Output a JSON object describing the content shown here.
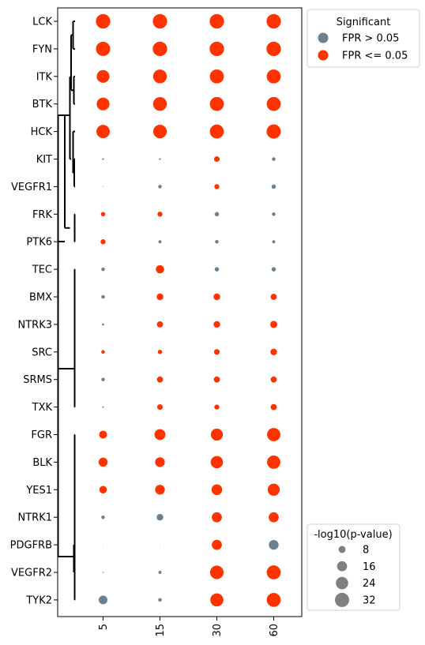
{
  "chart_data": {
    "type": "scatter",
    "title": "",
    "xlabel": "",
    "ylabel": "",
    "x_categories": [
      "5",
      "15",
      "30",
      "60"
    ],
    "y_categories": [
      "LCK",
      "FYN",
      "ITK",
      "BTK",
      "HCK",
      "KIT",
      "VEGFR1",
      "FRK",
      "PTK6",
      "TEC",
      "BMX",
      "NTRK3",
      "SRC",
      "SRMS",
      "TXK",
      "FGR",
      "BLK",
      "YES1",
      "NTRK1",
      "PDGFRB",
      "VEGFR2",
      "TYK2"
    ],
    "size_metric": "-log10(p-value)",
    "colors": {
      "significant": "#ff3300",
      "not_significant": "#6b8191"
    },
    "points": [
      {
        "row": "LCK",
        "values": [
          33,
          33,
          33,
          33
        ],
        "significant": [
          true,
          true,
          true,
          true
        ]
      },
      {
        "row": "FYN",
        "values": [
          32,
          33,
          33,
          33
        ],
        "significant": [
          true,
          true,
          true,
          true
        ]
      },
      {
        "row": "ITK",
        "values": [
          26,
          30,
          31,
          31
        ],
        "significant": [
          true,
          true,
          true,
          true
        ]
      },
      {
        "row": "BTK",
        "values": [
          26,
          30,
          31,
          31
        ],
        "significant": [
          true,
          true,
          true,
          true
        ]
      },
      {
        "row": "HCK",
        "values": [
          28,
          29,
          31,
          32
        ],
        "significant": [
          true,
          true,
          true,
          true
        ]
      },
      {
        "row": "KIT",
        "values": [
          0.5,
          0.5,
          5,
          2
        ],
        "significant": [
          false,
          false,
          true,
          false
        ]
      },
      {
        "row": "VEGFR1",
        "values": [
          0.1,
          2,
          4,
          3
        ],
        "significant": [
          false,
          false,
          true,
          false
        ]
      },
      {
        "row": "FRK",
        "values": [
          3,
          4,
          3,
          2
        ],
        "significant": [
          true,
          true,
          false,
          false
        ]
      },
      {
        "row": "PTK6",
        "values": [
          4,
          1.5,
          2,
          1.5
        ],
        "significant": [
          true,
          false,
          false,
          false
        ]
      },
      {
        "row": "TEC",
        "values": [
          2,
          11,
          3,
          3
        ],
        "significant": [
          false,
          true,
          false,
          false
        ]
      },
      {
        "row": "BMX",
        "values": [
          2,
          7,
          7,
          6
        ],
        "significant": [
          false,
          true,
          true,
          true
        ]
      },
      {
        "row": "NTRK3",
        "values": [
          0.7,
          6,
          7,
          8
        ],
        "significant": [
          false,
          true,
          true,
          true
        ]
      },
      {
        "row": "SRC",
        "values": [
          2,
          3,
          5,
          7
        ],
        "significant": [
          true,
          true,
          true,
          true
        ]
      },
      {
        "row": "SRMS",
        "values": [
          2,
          6,
          6,
          6
        ],
        "significant": [
          false,
          true,
          true,
          true
        ]
      },
      {
        "row": "TXK",
        "values": [
          0.4,
          5,
          4,
          6
        ],
        "significant": [
          false,
          true,
          true,
          true
        ]
      },
      {
        "row": "FGR",
        "values": [
          10,
          19,
          23,
          28
        ],
        "significant": [
          true,
          true,
          true,
          true
        ]
      },
      {
        "row": "BLK",
        "values": [
          13,
          15,
          24,
          28
        ],
        "significant": [
          true,
          true,
          true,
          true
        ]
      },
      {
        "row": "YES1",
        "values": [
          9,
          15,
          18,
          23
        ],
        "significant": [
          true,
          true,
          true,
          true
        ]
      },
      {
        "row": "NTRK1",
        "values": [
          2,
          7,
          16,
          16
        ],
        "significant": [
          false,
          false,
          true,
          true
        ]
      },
      {
        "row": "PDGFRB",
        "values": [
          0.05,
          0.05,
          16,
          15
        ],
        "significant": [
          false,
          false,
          true,
          false
        ]
      },
      {
        "row": "VEGFR2",
        "values": [
          0.2,
          1.5,
          29,
          31
        ],
        "significant": [
          false,
          false,
          true,
          true
        ]
      },
      {
        "row": "TYK2",
        "values": [
          12,
          2,
          27,
          31
        ],
        "significant": [
          false,
          false,
          true,
          true
        ]
      }
    ],
    "legend_color": {
      "title": "Significant",
      "entries": [
        {
          "label": "FPR > 0.05",
          "color": "#6b8191"
        },
        {
          "label": "FPR <= 0.05",
          "color": "#ff3300"
        }
      ],
      "placement": "upper right, outside"
    },
    "legend_size": {
      "title": "-log10(p-value)",
      "entries": [
        {
          "label": "8",
          "value": 8
        },
        {
          "label": "16",
          "value": 16
        },
        {
          "label": "24",
          "value": 24
        },
        {
          "label": "32",
          "value": 32
        }
      ],
      "placement": "lower right, outside"
    },
    "dendrogram": true
  }
}
